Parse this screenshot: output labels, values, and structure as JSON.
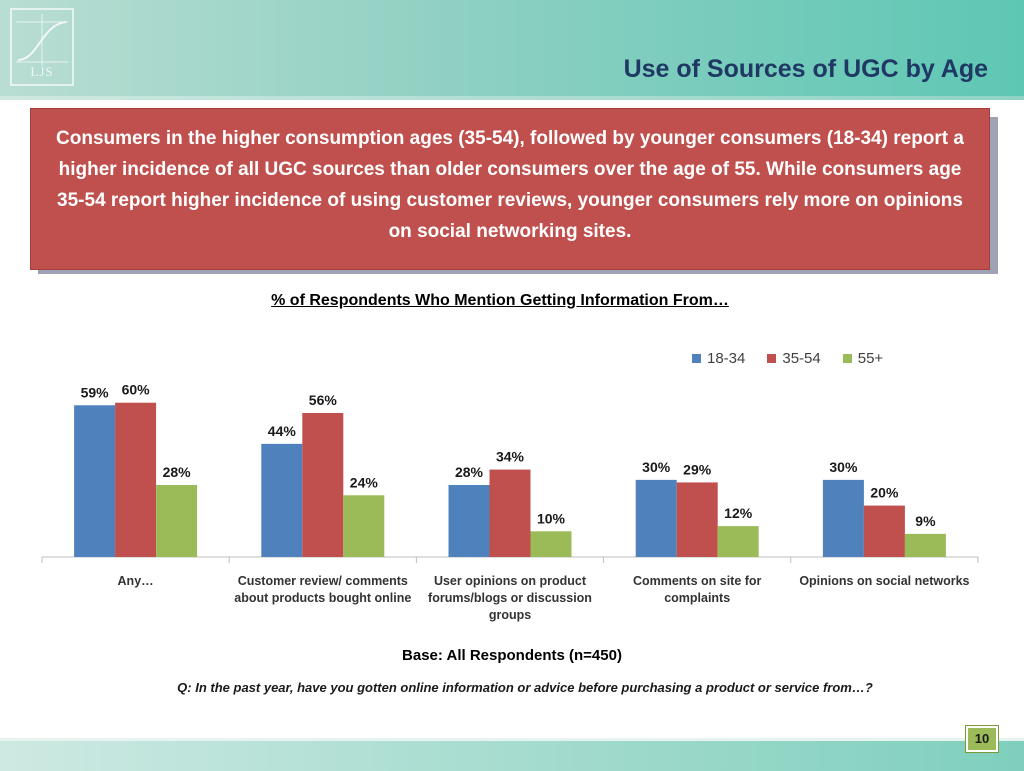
{
  "slide": {
    "title": "Use of Sources of UGC by Age",
    "logo_text": "LJS",
    "callout_text": "Consumers in the higher consumption ages (35-54), followed by younger consumers (18-34) report a higher incidence of all UGC sources than older consumers over the age of 55.  While consumers age 35-54 report higher incidence of using customer reviews, younger consumers rely more on opinions on social networking sites.",
    "base_note": "Base: All Respondents (n=450)",
    "question_note": "Q: In the past year, have you gotten online information or advice before purchasing a product or service from…?",
    "page_number": "10"
  },
  "colors": {
    "series_18_34": "#4f81bd",
    "series_35_54": "#c0504d",
    "series_55_plus": "#9bbb59",
    "title": "#1f3864",
    "callout_bg": "#c0504d"
  },
  "chart_data": {
    "type": "bar",
    "title": "% of Respondents Who Mention Getting Information From…",
    "xlabel": "",
    "ylabel": "",
    "ylim": [
      0,
      70
    ],
    "grid": false,
    "legend_position": "top-right",
    "categories": [
      "Any…",
      "Customer review/ comments about products bought online",
      "User opinions on product forums/blogs or discussion groups",
      "Comments on site for complaints",
      "Opinions on social networks"
    ],
    "series": [
      {
        "name": "18-34",
        "values": [
          59,
          44,
          28,
          30,
          30
        ],
        "labels": [
          "59%",
          "44%",
          "28%",
          "30%",
          "30%"
        ]
      },
      {
        "name": "35-54",
        "values": [
          60,
          56,
          34,
          29,
          20
        ],
        "labels": [
          "60%",
          "56%",
          "34%",
          "29%",
          "20%"
        ]
      },
      {
        "name": "55+",
        "values": [
          28,
          24,
          10,
          12,
          9
        ],
        "labels": [
          "28%",
          "24%",
          "10%",
          "12%",
          "9%"
        ]
      }
    ]
  }
}
